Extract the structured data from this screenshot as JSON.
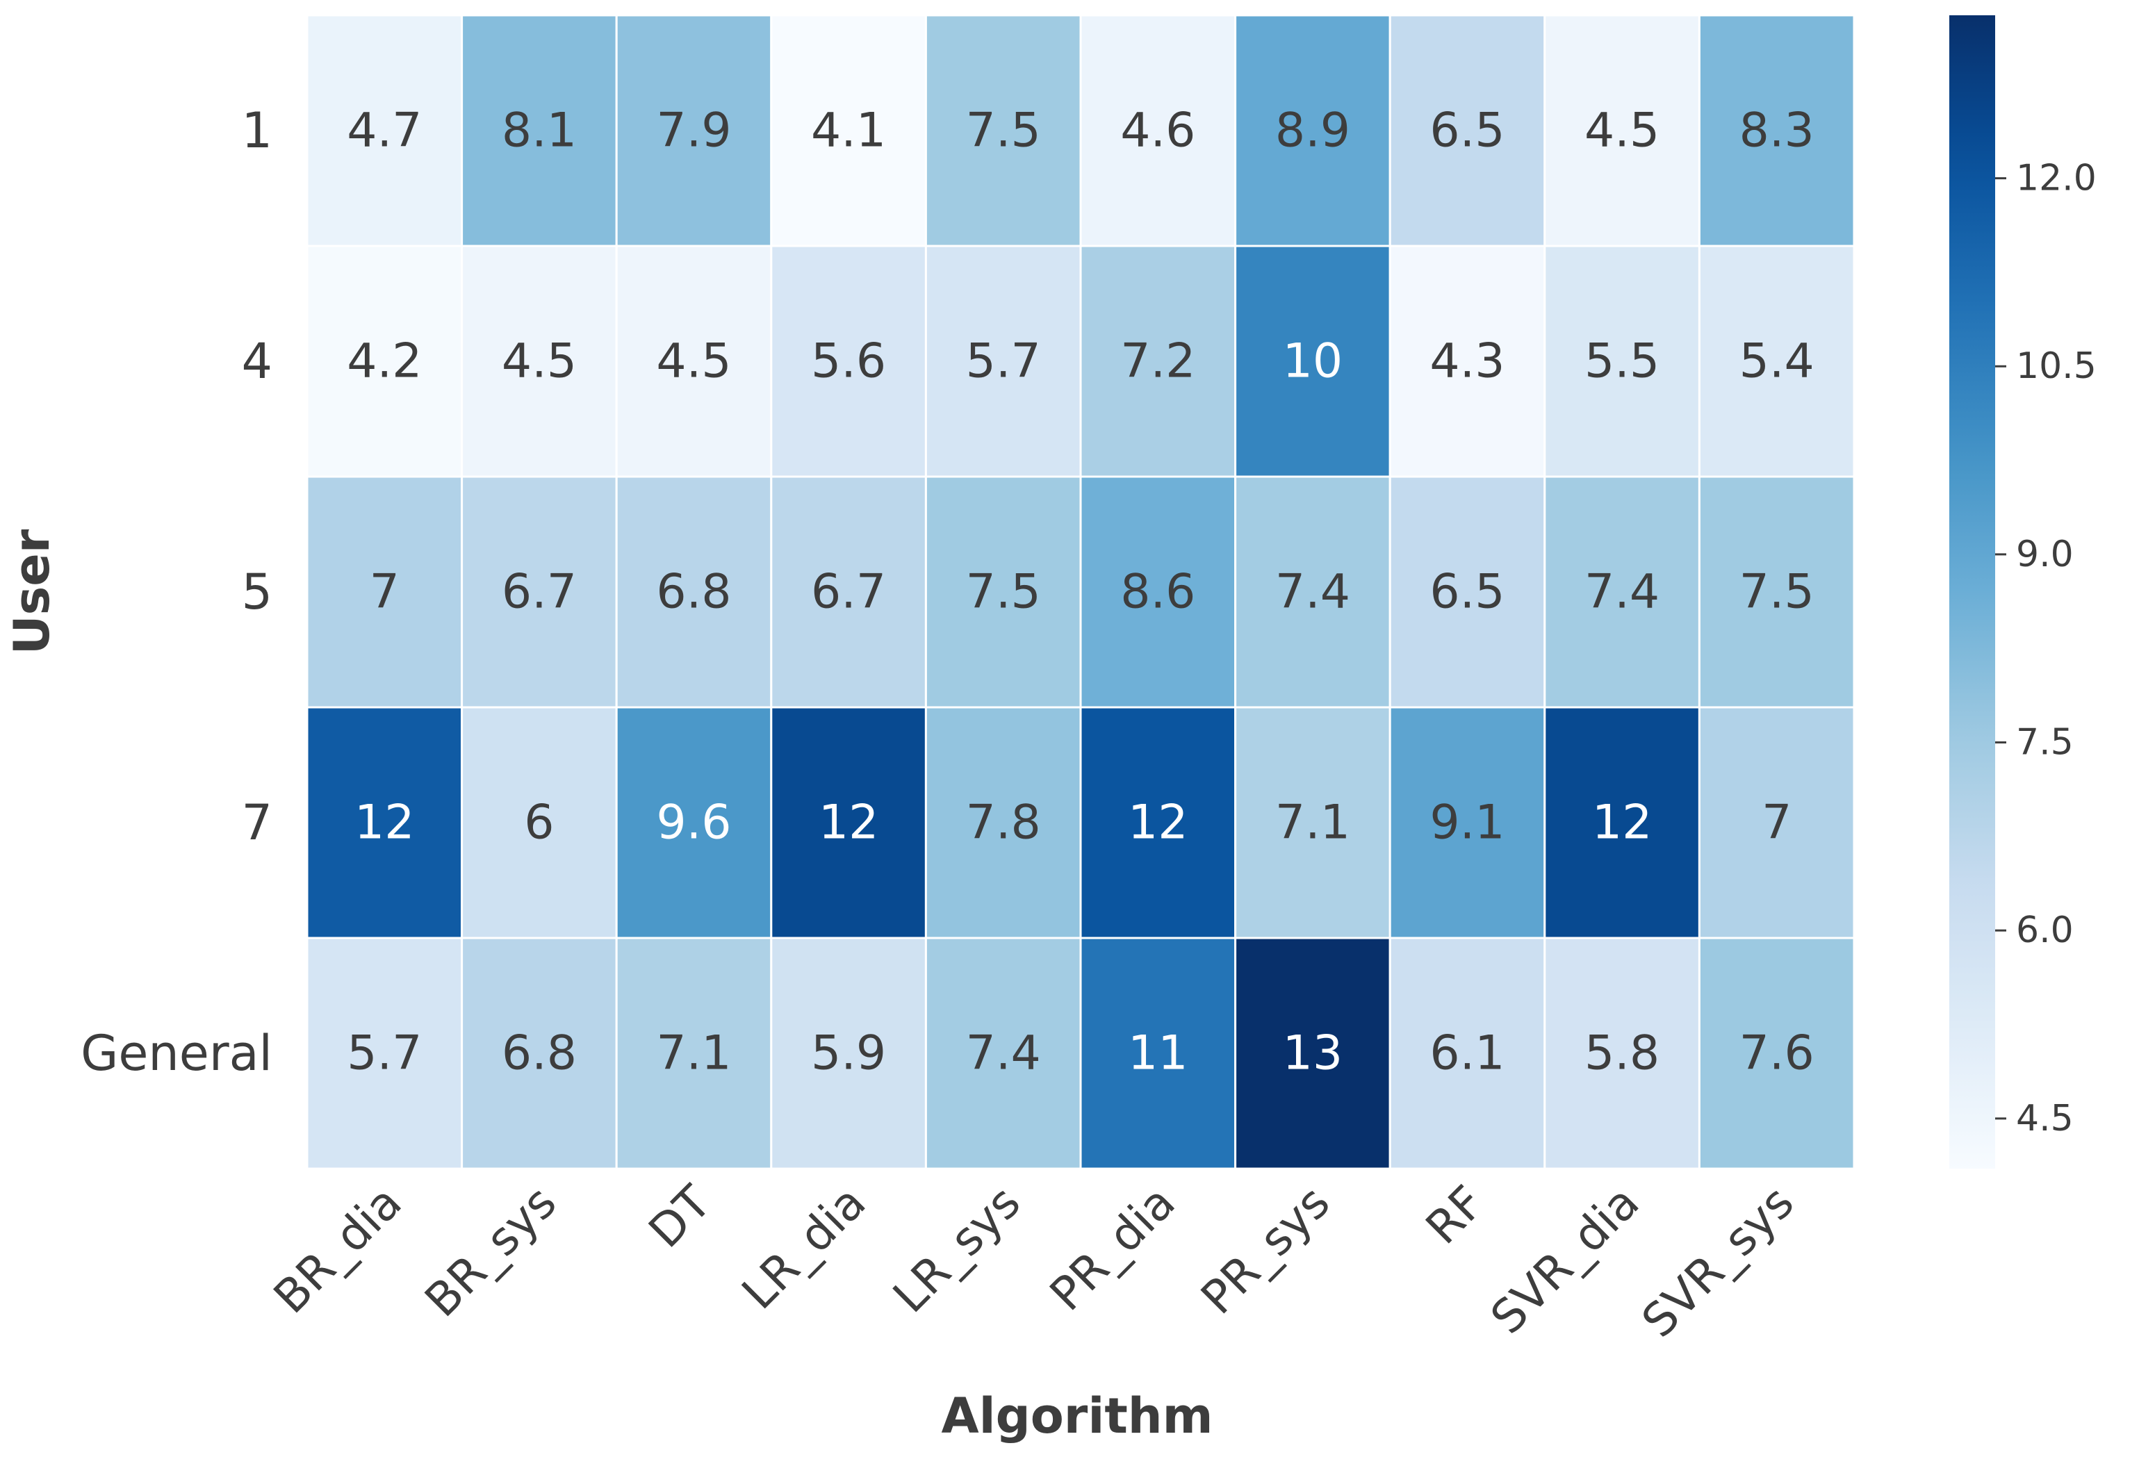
{
  "chart_data": {
    "type": "heatmap",
    "title": "",
    "xlabel": "Algorithm",
    "ylabel": "User",
    "x_categories": [
      "BR_dia",
      "BR_sys",
      "DT",
      "LR_dia",
      "LR_sys",
      "PR_dia",
      "PR_sys",
      "RF",
      "SVR_dia",
      "SVR_sys"
    ],
    "y_categories": [
      "1",
      "4",
      "5",
      "7",
      "General"
    ],
    "values": [
      [
        4.7,
        8.1,
        7.9,
        4.1,
        7.5,
        4.6,
        8.9,
        6.5,
        4.5,
        8.3
      ],
      [
        4.2,
        4.5,
        4.5,
        5.6,
        5.7,
        7.2,
        10.3,
        4.3,
        5.5,
        5.4
      ],
      [
        7.0,
        6.7,
        6.8,
        6.7,
        7.5,
        8.6,
        7.4,
        6.5,
        7.4,
        7.5
      ],
      [
        11.8,
        6.0,
        9.6,
        12.4,
        7.8,
        12.0,
        7.1,
        9.1,
        12.4,
        7.0
      ],
      [
        5.7,
        6.8,
        7.1,
        5.9,
        7.4,
        10.9,
        13.3,
        6.1,
        5.8,
        7.6
      ]
    ],
    "annotations": [
      [
        "4.7",
        "8.1",
        "7.9",
        "4.1",
        "7.5",
        "4.6",
        "8.9",
        "6.5",
        "4.5",
        "8.3"
      ],
      [
        "4.2",
        "4.5",
        "4.5",
        "5.6",
        "5.7",
        "7.2",
        "10",
        "4.3",
        "5.5",
        "5.4"
      ],
      [
        "7",
        "6.7",
        "6.8",
        "6.7",
        "7.5",
        "8.6",
        "7.4",
        "6.5",
        "7.4",
        "7.5"
      ],
      [
        "12",
        "6",
        "9.6",
        "12",
        "7.8",
        "12",
        "7.1",
        "9.1",
        "12",
        "7"
      ],
      [
        "5.7",
        "6.8",
        "7.1",
        "5.9",
        "7.4",
        "11",
        "13",
        "6.1",
        "5.8",
        "7.6"
      ]
    ],
    "colormap": "Blues",
    "colorbar": {
      "vmin": 4.1,
      "vmax": 13.3,
      "ticks": [
        4.5,
        6.0,
        7.5,
        9.0,
        10.5,
        12.0
      ],
      "tick_labels": [
        "4.5",
        "6.0",
        "7.5",
        "9.0",
        "10.5",
        "12.0"
      ]
    },
    "grid": true
  }
}
